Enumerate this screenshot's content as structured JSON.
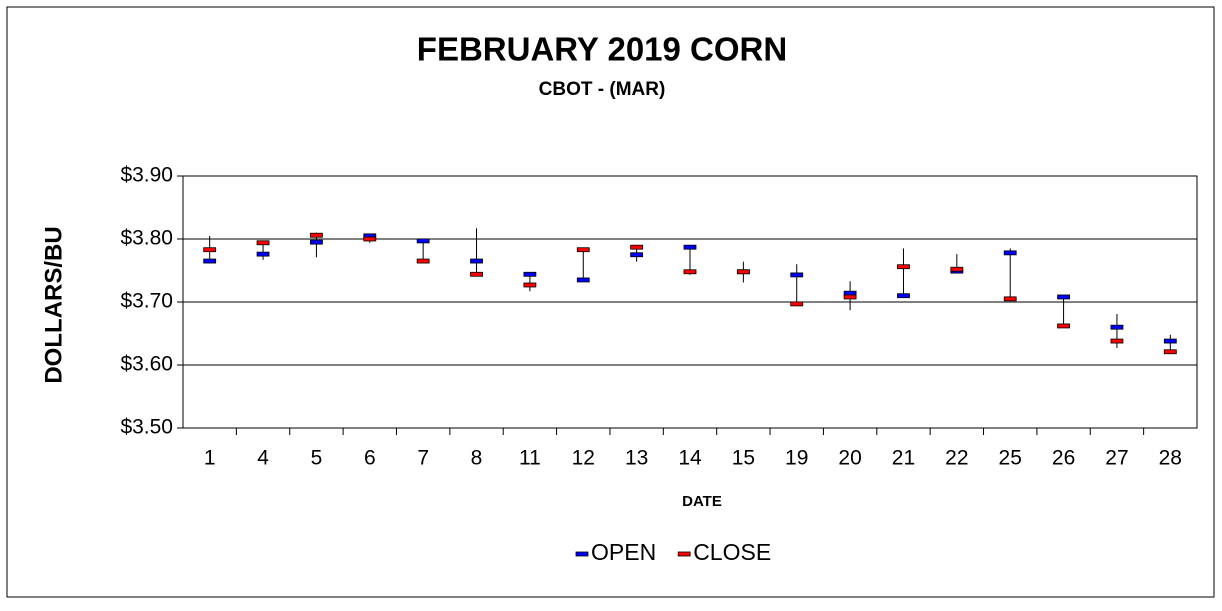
{
  "chart_data": {
    "type": "ohlc",
    "title": "FEBRUARY 2019 CORN",
    "subtitle": "CBOT - (MAR)",
    "x_label": "DATE",
    "y_label": "DOLLARS/BU",
    "categories": [
      "1",
      "4",
      "5",
      "6",
      "7",
      "8",
      "11",
      "12",
      "13",
      "14",
      "15",
      "19",
      "20",
      "21",
      "22",
      "25",
      "26",
      "27",
      "28"
    ],
    "series": [
      {
        "name": "OPEN",
        "color": "#0000ff",
        "values": [
          3.765,
          3.776,
          3.795,
          3.805,
          3.797,
          3.765,
          3.744,
          3.735,
          3.775,
          3.787,
          3.748,
          3.743,
          3.714,
          3.71,
          3.749,
          3.778,
          3.708,
          3.66,
          3.638
        ]
      },
      {
        "name": "CLOSE",
        "color": "#ff0000",
        "values": [
          3.783,
          3.794,
          3.806,
          3.8,
          3.765,
          3.744,
          3.727,
          3.783,
          3.787,
          3.748,
          3.748,
          3.697,
          3.708,
          3.756,
          3.752,
          3.705,
          3.662,
          3.638,
          3.621
        ]
      }
    ],
    "high": [
      3.805,
      3.797,
      3.81,
      3.806,
      3.798,
      3.817,
      3.746,
      3.785,
      3.789,
      3.789,
      3.764,
      3.76,
      3.733,
      3.785,
      3.776,
      3.785,
      3.71,
      3.681,
      3.648
    ],
    "low": [
      3.765,
      3.767,
      3.771,
      3.794,
      3.764,
      3.741,
      3.717,
      3.733,
      3.764,
      3.743,
      3.731,
      3.694,
      3.687,
      3.708,
      3.746,
      3.703,
      3.66,
      3.627,
      3.619
    ],
    "ylim": [
      3.5,
      3.9
    ],
    "yticks": [
      {
        "value": 3.5,
        "label": "$3.50"
      },
      {
        "value": 3.6,
        "label": "$3.60"
      },
      {
        "value": 3.7,
        "label": "$3.70"
      },
      {
        "value": 3.8,
        "label": "$3.80"
      },
      {
        "value": 3.9,
        "label": "$3.90"
      }
    ],
    "grid": true,
    "legend": "bottom"
  }
}
